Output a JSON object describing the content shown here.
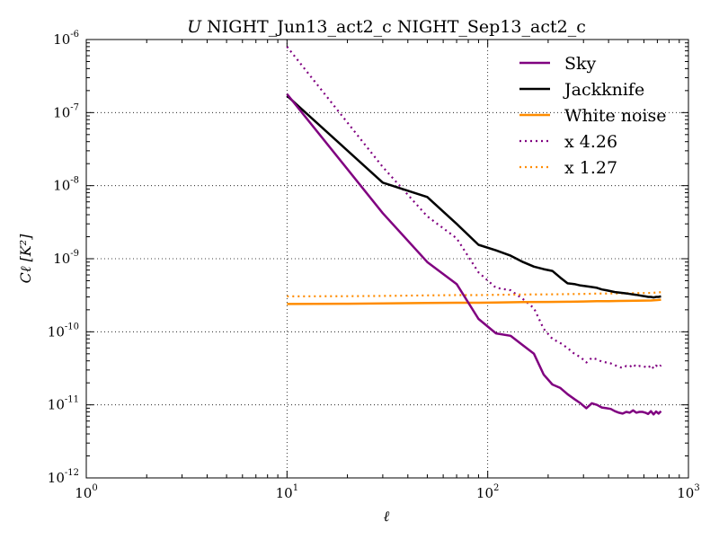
{
  "chart_data": {
    "type": "line",
    "title": "U NIGHT_Jun13_act2_c NIGHT_Sep13_act2_c",
    "title_italic_prefix": "U",
    "title_rest": "NIGHT_Jun13_act2_c NIGHT_Sep13_act2_c",
    "xlabel": "ℓ",
    "ylabel": "Cℓ [K²]",
    "xscale": "log",
    "yscale": "log",
    "xlim": [
      1,
      1000
    ],
    "ylim": [
      1e-12,
      1e-06
    ],
    "grid": true,
    "legend_position": "top-right",
    "x_ticks": [
      {
        "base": "10",
        "exp": "0",
        "value": 1
      },
      {
        "base": "10",
        "exp": "1",
        "value": 10
      },
      {
        "base": "10",
        "exp": "2",
        "value": 100
      },
      {
        "base": "10",
        "exp": "3",
        "value": 1000
      }
    ],
    "y_ticks": [
      {
        "base": "10",
        "exp": "-12",
        "value": 1e-12
      },
      {
        "base": "10",
        "exp": "-11",
        "value": 1e-11
      },
      {
        "base": "10",
        "exp": "-10",
        "value": 1e-10
      },
      {
        "base": "10",
        "exp": "-9",
        "value": 1e-09
      },
      {
        "base": "10",
        "exp": "-8",
        "value": 1e-08
      },
      {
        "base": "10",
        "exp": "-7",
        "value": 1e-07
      },
      {
        "base": "10",
        "exp": "-6",
        "value": 1e-06
      }
    ],
    "series": [
      {
        "name": "Sky",
        "color": "#800080",
        "style": "solid",
        "points": [
          [
            10,
            1.8e-07
          ],
          [
            30,
            4.2e-09
          ],
          [
            50,
            9e-10
          ],
          [
            70,
            4.5e-10
          ],
          [
            90,
            1.5e-10
          ],
          [
            110,
            9.5e-11
          ],
          [
            130,
            8.8e-11
          ],
          [
            150,
            6.5e-11
          ],
          [
            170,
            5e-11
          ],
          [
            190,
            2.6e-11
          ],
          [
            210,
            1.9e-11
          ],
          [
            230,
            1.7e-11
          ],
          [
            250,
            1.4e-11
          ],
          [
            270,
            1.2e-11
          ],
          [
            290,
            1.05e-11
          ],
          [
            310,
            9e-12
          ],
          [
            330,
            1.05e-11
          ],
          [
            350,
            1e-11
          ],
          [
            370,
            9.2e-12
          ],
          [
            390,
            9e-12
          ],
          [
            410,
            8.8e-12
          ],
          [
            430,
            8.2e-12
          ],
          [
            450,
            7.8e-12
          ],
          [
            470,
            7.6e-12
          ],
          [
            490,
            8e-12
          ],
          [
            510,
            7.8e-12
          ],
          [
            530,
            8.4e-12
          ],
          [
            550,
            7.8e-12
          ],
          [
            570,
            8e-12
          ],
          [
            590,
            8e-12
          ],
          [
            610,
            7.8e-12
          ],
          [
            630,
            7.5e-12
          ],
          [
            650,
            8.2e-12
          ],
          [
            670,
            7.4e-12
          ],
          [
            690,
            8.1e-12
          ],
          [
            710,
            7.6e-12
          ],
          [
            730,
            8.2e-12
          ]
        ]
      },
      {
        "name": "Jackknife",
        "color": "#000000",
        "style": "solid",
        "points": [
          [
            10,
            1.7e-07
          ],
          [
            30,
            1.1e-08
          ],
          [
            50,
            7e-09
          ],
          [
            70,
            3e-09
          ],
          [
            90,
            1.55e-09
          ],
          [
            110,
            1.3e-09
          ],
          [
            130,
            1.1e-09
          ],
          [
            150,
            9e-10
          ],
          [
            170,
            7.8e-10
          ],
          [
            190,
            7.2e-10
          ],
          [
            210,
            6.8e-10
          ],
          [
            230,
            5.5e-10
          ],
          [
            250,
            4.6e-10
          ],
          [
            270,
            4.5e-10
          ],
          [
            290,
            4.3e-10
          ],
          [
            310,
            4.2e-10
          ],
          [
            330,
            4.1e-10
          ],
          [
            350,
            4e-10
          ],
          [
            370,
            3.8e-10
          ],
          [
            390,
            3.7e-10
          ],
          [
            410,
            3.6e-10
          ],
          [
            430,
            3.5e-10
          ],
          [
            450,
            3.45e-10
          ],
          [
            470,
            3.4e-10
          ],
          [
            490,
            3.35e-10
          ],
          [
            510,
            3.3e-10
          ],
          [
            530,
            3.25e-10
          ],
          [
            550,
            3.2e-10
          ],
          [
            570,
            3.15e-10
          ],
          [
            590,
            3.1e-10
          ],
          [
            610,
            3.05e-10
          ],
          [
            630,
            3e-10
          ],
          [
            650,
            3e-10
          ],
          [
            670,
            2.95e-10
          ],
          [
            690,
            3e-10
          ],
          [
            710,
            3e-10
          ],
          [
            730,
            3.05e-10
          ]
        ]
      },
      {
        "name": "White noise",
        "color": "#FF8C00",
        "style": "solid",
        "points": [
          [
            10,
            2.4e-10
          ],
          [
            20,
            2.42e-10
          ],
          [
            30,
            2.45e-10
          ],
          [
            50,
            2.48e-10
          ],
          [
            70,
            2.5e-10
          ],
          [
            90,
            2.5e-10
          ],
          [
            110,
            2.52e-10
          ],
          [
            150,
            2.55e-10
          ],
          [
            200,
            2.56e-10
          ],
          [
            250,
            2.58e-10
          ],
          [
            300,
            2.6e-10
          ],
          [
            350,
            2.62e-10
          ],
          [
            400,
            2.63e-10
          ],
          [
            450,
            2.64e-10
          ],
          [
            500,
            2.65e-10
          ],
          [
            550,
            2.66e-10
          ],
          [
            600,
            2.67e-10
          ],
          [
            650,
            2.68e-10
          ],
          [
            700,
            2.72e-10
          ],
          [
            730,
            2.75e-10
          ]
        ]
      },
      {
        "name": "x 4.26",
        "color": "#800080",
        "style": "dotted",
        "points": [
          [
            10,
            8e-07
          ],
          [
            30,
            1.8e-08
          ],
          [
            50,
            3.8e-09
          ],
          [
            70,
            1.9e-09
          ],
          [
            90,
            6.5e-10
          ],
          [
            110,
            4e-10
          ],
          [
            130,
            3.7e-10
          ],
          [
            150,
            2.8e-10
          ],
          [
            170,
            2.1e-10
          ],
          [
            190,
            1.1e-10
          ],
          [
            210,
            8e-11
          ],
          [
            230,
            7e-11
          ],
          [
            250,
            6e-11
          ],
          [
            270,
            5e-11
          ],
          [
            290,
            4.5e-11
          ],
          [
            310,
            3.8e-11
          ],
          [
            330,
            4.4e-11
          ],
          [
            350,
            4.2e-11
          ],
          [
            370,
            3.9e-11
          ],
          [
            390,
            3.8e-11
          ],
          [
            410,
            3.7e-11
          ],
          [
            430,
            3.5e-11
          ],
          [
            450,
            3.3e-11
          ],
          [
            470,
            3.2e-11
          ],
          [
            490,
            3.4e-11
          ],
          [
            510,
            3.3e-11
          ],
          [
            530,
            3.6e-11
          ],
          [
            550,
            3.3e-11
          ],
          [
            570,
            3.4e-11
          ],
          [
            590,
            3.4e-11
          ],
          [
            610,
            3.3e-11
          ],
          [
            630,
            3.2e-11
          ],
          [
            650,
            3.5e-11
          ],
          [
            670,
            3.15e-11
          ],
          [
            690,
            3.45e-11
          ],
          [
            710,
            3.25e-11
          ],
          [
            730,
            3.5e-11
          ]
        ]
      },
      {
        "name": "x 1.27",
        "color": "#FF8C00",
        "style": "dotted",
        "points": [
          [
            10,
            3.05e-10
          ],
          [
            20,
            3.07e-10
          ],
          [
            30,
            3.1e-10
          ],
          [
            50,
            3.15e-10
          ],
          [
            70,
            3.18e-10
          ],
          [
            90,
            3.18e-10
          ],
          [
            110,
            3.2e-10
          ],
          [
            150,
            3.24e-10
          ],
          [
            200,
            3.25e-10
          ],
          [
            250,
            3.28e-10
          ],
          [
            300,
            3.3e-10
          ],
          [
            350,
            3.33e-10
          ],
          [
            400,
            3.34e-10
          ],
          [
            450,
            3.35e-10
          ],
          [
            500,
            3.37e-10
          ],
          [
            550,
            3.38e-10
          ],
          [
            600,
            3.39e-10
          ],
          [
            650,
            3.4e-10
          ],
          [
            700,
            3.45e-10
          ],
          [
            730,
            3.49e-10
          ]
        ]
      }
    ]
  }
}
